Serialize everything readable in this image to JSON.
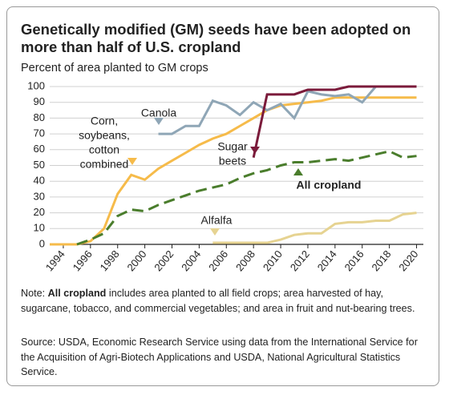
{
  "chart_data": {
    "type": "line",
    "title": "Genetically modified (GM) seeds have been adopted on more than half of U.S. cropland",
    "subtitle": "Percent of area planted to GM crops",
    "x": [
      1993,
      1994,
      1995,
      1996,
      1997,
      1998,
      1999,
      2000,
      2001,
      2002,
      2003,
      2004,
      2005,
      2006,
      2007,
      2008,
      2009,
      2010,
      2011,
      2012,
      2013,
      2014,
      2015,
      2016,
      2017,
      2018,
      2019,
      2020
    ],
    "xlim": [
      1993,
      2020.5
    ],
    "xticks": [
      1994,
      1996,
      1998,
      2000,
      2002,
      2004,
      2006,
      2008,
      2010,
      2012,
      2014,
      2016,
      2018,
      2020
    ],
    "ylim": [
      0,
      100
    ],
    "yticks": [
      0,
      10,
      20,
      30,
      40,
      50,
      60,
      70,
      80,
      90,
      100
    ],
    "grid": true,
    "series": [
      {
        "name": "Corn, soybeans, cotton combined",
        "color": "#f6bb4a",
        "dashed": false,
        "values": [
          0,
          0,
          0,
          2,
          10,
          32,
          44,
          41,
          48,
          53,
          58,
          63,
          67,
          70,
          75,
          80,
          85,
          88,
          89,
          90,
          91,
          93,
          93,
          93,
          93,
          93,
          93,
          93
        ]
      },
      {
        "name": "Canola",
        "color": "#8fa6b6",
        "dashed": false,
        "values": [
          null,
          null,
          null,
          null,
          null,
          null,
          null,
          null,
          70,
          70,
          75,
          75,
          91,
          88,
          82,
          90,
          85,
          89,
          80,
          97,
          95,
          94,
          95,
          90,
          100,
          null,
          null,
          null
        ]
      },
      {
        "name": "Sugar beets",
        "color": "#7b1b3b",
        "dashed": false,
        "values": [
          null,
          null,
          null,
          null,
          null,
          null,
          null,
          null,
          null,
          null,
          null,
          null,
          null,
          null,
          null,
          55,
          95,
          95,
          95,
          98,
          98,
          98,
          100,
          100,
          100,
          100,
          100,
          100
        ]
      },
      {
        "name": "All cropland",
        "color": "#4a7d2c",
        "dashed": true,
        "values": [
          null,
          null,
          0,
          3,
          7,
          18,
          22,
          21,
          25,
          28,
          31,
          34,
          36,
          38,
          42,
          45,
          47,
          50,
          52,
          52,
          53,
          54,
          53,
          55,
          57,
          59,
          55,
          56
        ]
      },
      {
        "name": "Alfalfa",
        "color": "#e6d391",
        "dashed": false,
        "values": [
          null,
          null,
          null,
          null,
          null,
          null,
          null,
          null,
          null,
          null,
          null,
          null,
          1,
          1,
          1,
          1,
          1,
          3,
          6,
          7,
          7,
          13,
          14,
          14,
          15,
          15,
          19,
          20
        ]
      }
    ],
    "annotations": [
      {
        "lines": [
          "Corn,",
          "soybeans,",
          "cotton",
          "combined"
        ]
      },
      {
        "lines": [
          "Canola"
        ]
      },
      {
        "lines": [
          "Sugar",
          "beets"
        ]
      },
      {
        "lines": [
          "All cropland"
        ]
      },
      {
        "lines": [
          "Alfalfa"
        ]
      }
    ]
  },
  "note": {
    "label": "Note:",
    "bold": "All cropland",
    "text": "includes area planted to all field crops; area harvested of hay, sugarcane, tobacco, and commercial vegetables; and area in fruit and nut-bearing trees."
  },
  "source": "Source: USDA, Economic Research Service using data from the International Service for the Acquisition of Agri-Biotech Applications and USDA, National Agricultural Statistics Service."
}
